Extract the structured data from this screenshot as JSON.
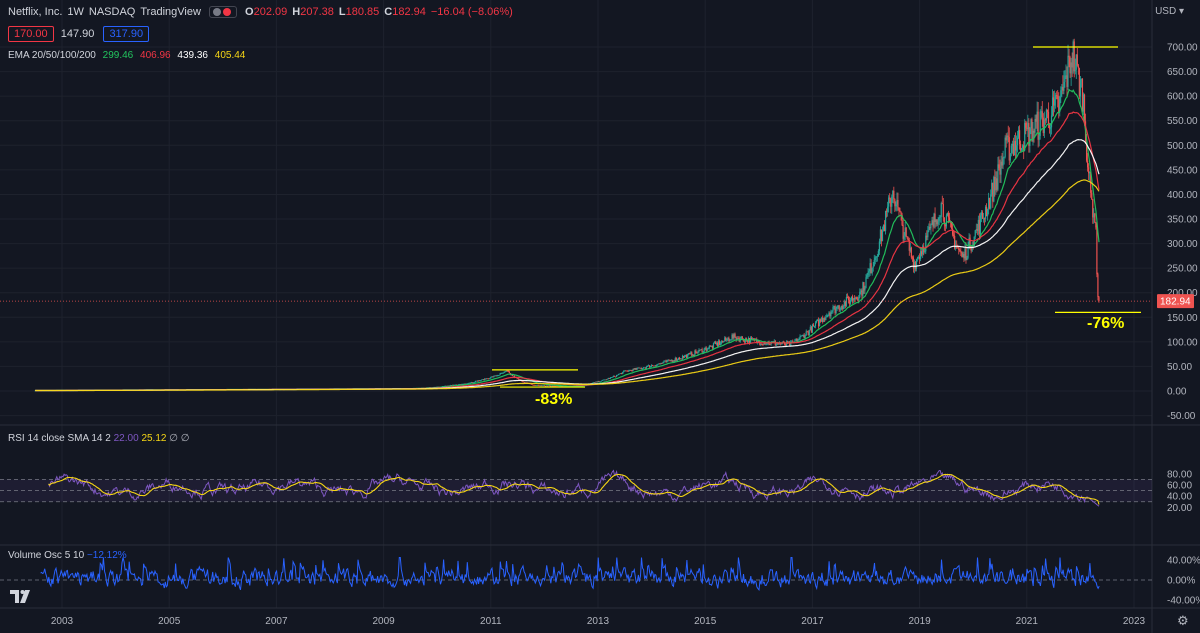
{
  "header": {
    "symbol": "Netflix, Inc.",
    "interval": "1W",
    "exchange": "NASDAQ",
    "source": "TradingView",
    "ohlc": {
      "o_label": "O",
      "o": "202.09",
      "h_label": "H",
      "h": "207.38",
      "l_label": "L",
      "l": "180.85",
      "c_label": "C",
      "c": "182.94",
      "change": "−16.04 (−8.06%)"
    },
    "sell_price": "170.00",
    "spread": "147.90",
    "buy_price": "317.90",
    "currency": "USD"
  },
  "ema_legend": {
    "label": "EMA 20/50/100/200",
    "values": [
      "299.46",
      "406.96",
      "439.36",
      "405.44"
    ],
    "colors": [
      "#22c55e",
      "#f23645",
      "#ffffff",
      "#f5d515"
    ]
  },
  "rsi_legend": {
    "label": "RSI 14 close SMA 14 2",
    "rsi": "22.00",
    "sma": "25.12",
    "extra": "∅ ∅"
  },
  "volosc_legend": {
    "label": "Volume Osc 5 10",
    "value": "−12.12%"
  },
  "price_tag": "182.94",
  "annotations": {
    "drop_2011": "-83%",
    "drop_2022": "-76%"
  },
  "colors": {
    "background": "#131722",
    "candle_up": "#26a69a",
    "candle_down": "#ef5350",
    "rsi": "#7e57c2",
    "rsi_sma": "#f5d515",
    "vol_osc": "#2962ff",
    "annotation": "#ffff00"
  },
  "chart_data": [
    {
      "type": "line",
      "name_of_panel": "price",
      "x_ticks": [
        "2003",
        "2005",
        "2007",
        "2009",
        "2011",
        "2013",
        "2015",
        "2017",
        "2019",
        "2021",
        "2023"
      ],
      "y_ticks": [
        "-50.00",
        "0.00",
        "50.00",
        "100.00",
        "150.00",
        "200.00",
        "250.00",
        "300.00",
        "350.00",
        "400.00",
        "450.00",
        "500.00",
        "550.00",
        "600.00",
        "650.00",
        "700.00"
      ],
      "ylim": [
        -50,
        700
      ],
      "close_points": [
        [
          2002.5,
          1
        ],
        [
          2004,
          2
        ],
        [
          2006,
          3
        ],
        [
          2008,
          4
        ],
        [
          2009.5,
          5
        ],
        [
          2010.5,
          15
        ],
        [
          2011.3,
          40
        ],
        [
          2011.8,
          12
        ],
        [
          2012.5,
          9
        ],
        [
          2013.5,
          40
        ],
        [
          2014.3,
          60
        ],
        [
          2015.5,
          110
        ],
        [
          2016,
          100
        ],
        [
          2016.6,
          95
        ],
        [
          2017.3,
          160
        ],
        [
          2017.9,
          200
        ],
        [
          2018.5,
          410
        ],
        [
          2018.9,
          260
        ],
        [
          2019.4,
          380
        ],
        [
          2019.8,
          270
        ],
        [
          2020.2,
          360
        ],
        [
          2020.6,
          490
        ],
        [
          2021.2,
          540
        ],
        [
          2021.6,
          580
        ],
        [
          2021.85,
          690
        ],
        [
          2022.05,
          600
        ],
        [
          2022.2,
          390
        ],
        [
          2022.28,
          350
        ],
        [
          2022.33,
          190
        ],
        [
          2022.36,
          182.94
        ]
      ],
      "ema_series": [
        {
          "period": 20,
          "end": 299.46
        },
        {
          "period": 50,
          "end": 406.96
        },
        {
          "period": 100,
          "end": 439.36
        },
        {
          "period": 200,
          "end": 405.44
        }
      ],
      "levels": [
        {
          "label": "2011 high",
          "value": 43
        },
        {
          "label": "2012 low",
          "value": 8
        },
        {
          "label": "2021 high",
          "value": 700
        },
        {
          "label": "2022 low",
          "value": 160
        }
      ],
      "current_price": 182.94
    },
    {
      "type": "line",
      "name_of_panel": "rsi",
      "y_ticks": [
        "20.00",
        "40.00",
        "60.00",
        "80.00"
      ],
      "ylim": [
        15,
        90
      ],
      "band": [
        30,
        70
      ],
      "midline": 50,
      "rsi_last": 22.0,
      "sma_last": 25.12
    },
    {
      "type": "line",
      "name_of_panel": "volume_oscillator",
      "y_ticks": [
        "40.00%",
        "0.00%",
        "-40.00%"
      ],
      "ylim": [
        -45,
        50
      ],
      "last": -12.12
    }
  ]
}
